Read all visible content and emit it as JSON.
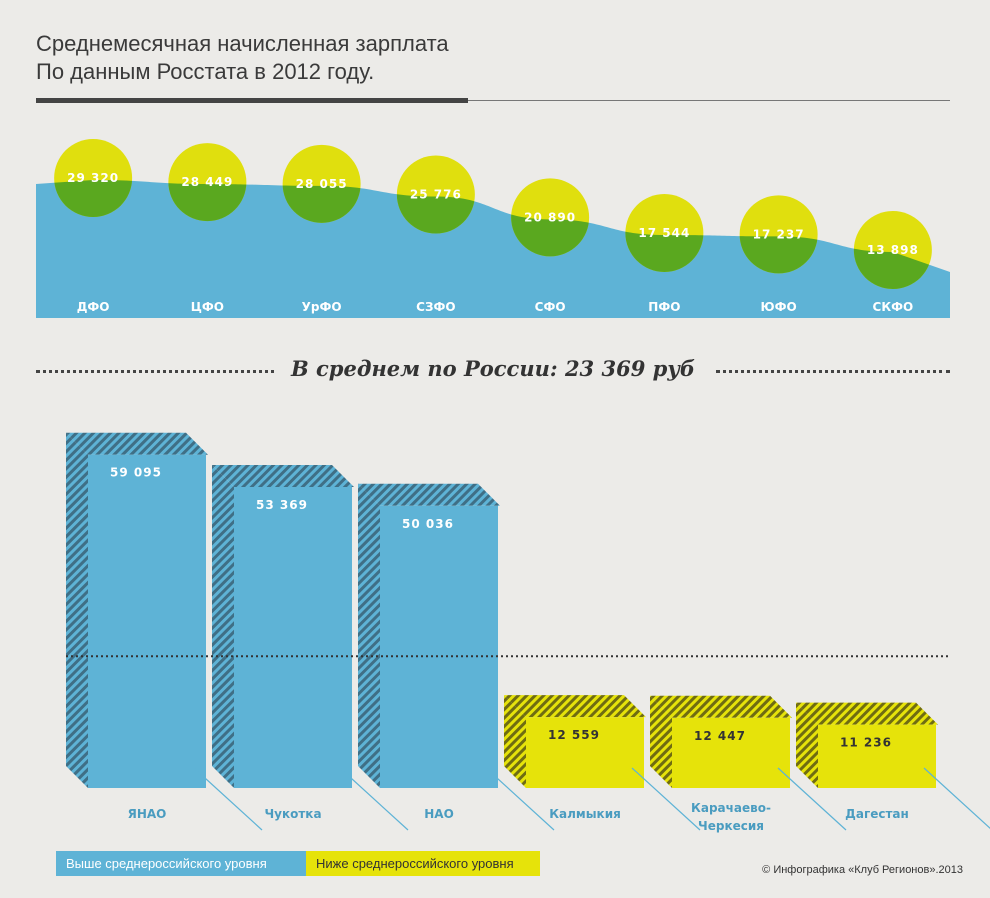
{
  "header": {
    "title_line1": "Среднемесячная начисленная зарплата",
    "title_line2": "По данным Росстата в 2012 году."
  },
  "average": {
    "label": "В среднем по России: 23 369 руб",
    "value": 23369
  },
  "colors": {
    "area": "#5eb3d6",
    "circle_yellow": "#e0df0e",
    "circle_green": "#5aa81f",
    "bar_above": "#5eb3d6",
    "bar_below": "#e6e30a",
    "background": "#ecebe8"
  },
  "chart_data": [
    {
      "type": "area",
      "title": "Среднемесячная начисленная зарплата",
      "categories": [
        "ДФО",
        "ЦФО",
        "УрФО",
        "СЗФО",
        "СФО",
        "ПФО",
        "ЮФО",
        "СКФО"
      ],
      "values": [
        29320,
        28449,
        28055,
        25776,
        20890,
        17544,
        17237,
        13898
      ],
      "value_labels": [
        "29 320",
        "28 449",
        "28 055",
        "25 776",
        "20 890",
        "17 544",
        "17 237",
        "13 898"
      ]
    },
    {
      "type": "bar",
      "categories": [
        "ЯНАО",
        "Чукотка",
        "НАО",
        "Калмыкия",
        "Карачаево-Черкесия",
        "Дагестан"
      ],
      "category_lines": [
        [
          "ЯНАО"
        ],
        [
          "Чукотка"
        ],
        [
          "НАО"
        ],
        [
          "Калмыкия"
        ],
        [
          "Карачаево-",
          "Черкесия"
        ],
        [
          "Дагестан"
        ]
      ],
      "values": [
        59095,
        53369,
        50036,
        12559,
        12447,
        11236
      ],
      "value_labels": [
        "59 095",
        "53 369",
        "50 036",
        "12 559",
        "12 447",
        "11 236"
      ],
      "groups": [
        "above",
        "above",
        "above",
        "below",
        "below",
        "below"
      ],
      "reference_line": 23369,
      "legend": [
        {
          "key": "above",
          "label": "Выше среднероссийского уровня"
        },
        {
          "key": "below",
          "label": "Ниже среднероссийского уровня"
        }
      ]
    }
  ],
  "credit": "© Инфографика «Клуб Регионов».2013"
}
